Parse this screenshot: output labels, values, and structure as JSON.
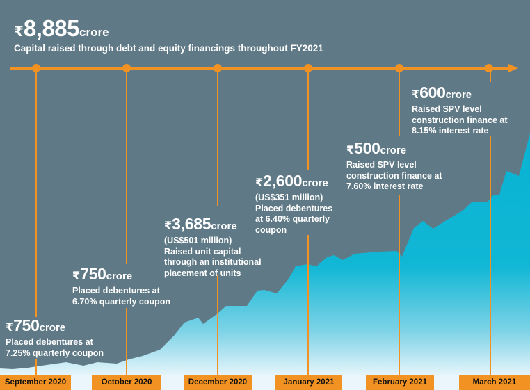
{
  "header": {
    "currency_symbol": "₹",
    "total_amount": "8,885",
    "unit": "crore",
    "subtitle": "Capital raised through debt and equity financings throughout FY2021"
  },
  "events": [
    {
      "currency": "₹",
      "amount": "750",
      "unit": "crore",
      "lines": [
        "Placed debentures at",
        "7.25% quarterly coupon"
      ]
    },
    {
      "currency": "₹",
      "amount": "750",
      "unit": "crore",
      "lines": [
        "Placed debentures at",
        "6.70% quarterly coupon"
      ]
    },
    {
      "currency": "₹",
      "amount": "3,685",
      "unit": "crore",
      "lines": [
        "(US$501 million)",
        "Raised unit capital",
        "through an institutional",
        "placement of units"
      ]
    },
    {
      "currency": "₹",
      "amount": "2,600",
      "unit": "crore",
      "lines": [
        "(US$351 million)",
        "Placed debentures",
        "at 6.40% quarterly",
        "coupon"
      ]
    },
    {
      "currency": "₹",
      "amount": "500",
      "unit": "crore",
      "lines": [
        "Raised SPV level",
        "construction finance at",
        "7.60% interest rate"
      ]
    },
    {
      "currency": "₹",
      "amount": "600",
      "unit": "crore",
      "lines": [
        "Raised SPV level",
        "construction finance at",
        "8.15% interest rate"
      ]
    }
  ],
  "months": [
    "September 2020",
    "October 2020",
    "December 2020",
    "January 2021",
    "February 2021",
    "March 2021"
  ],
  "colors": {
    "background": "#5f7a86",
    "accent": "#f29222",
    "area_top": "#09b3d2",
    "area_bottom": "#e6f5fa"
  }
}
